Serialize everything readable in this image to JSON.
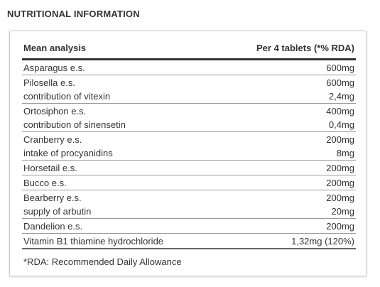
{
  "title": "NUTRITIONAL INFORMATION",
  "table": {
    "header": [
      "Mean analysis",
      "Per 4 tablets (*% RDA)"
    ],
    "rows": [
      [
        [
          "Asparagus e.s.",
          "600mg"
        ]
      ],
      [
        [
          "Pilosella e.s.",
          "600mg"
        ],
        [
          "contribution of vitexin",
          "2,4mg"
        ]
      ],
      [
        [
          "Ortosiphon e.s.",
          "400mg"
        ],
        [
          "contribution of sinensetin",
          "0,4mg"
        ]
      ],
      [
        [
          "Cranberry e.s.",
          "200mg"
        ],
        [
          "intake of procyanidins",
          "8mg"
        ]
      ],
      [
        [
          "Horsetail e.s.",
          "200mg"
        ]
      ],
      [
        [
          "Bucco e.s.",
          "200mg"
        ]
      ],
      [
        [
          "Bearberry e.s.",
          "200mg"
        ],
        [
          "supply of arbutin",
          "20mg"
        ]
      ],
      [
        [
          "Dandelion e.s.",
          "200mg"
        ]
      ],
      [
        [
          "Vitamin B1 thiamine hydrochloride",
          "1,32mg (120%)"
        ]
      ]
    ]
  },
  "footnote": "*RDA: Recommended Daily Allowance"
}
